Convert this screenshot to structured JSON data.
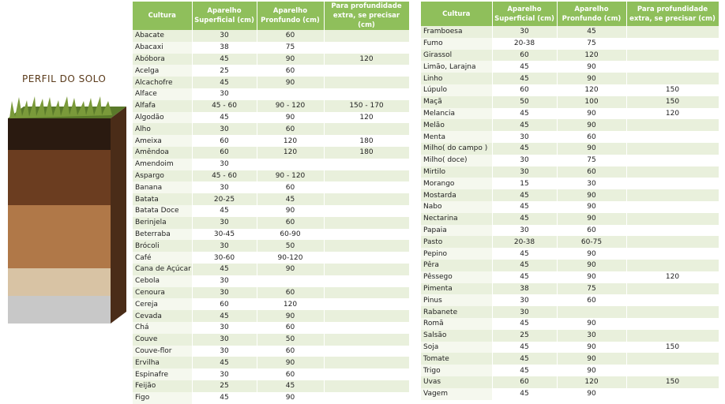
{
  "image_title": "PERFIL DO SOLO",
  "tables": [
    {
      "header": [
        "Cultura",
        "Aparelho Superficial (cm)",
        "Aparelho Pronfundo (cm)",
        "Para profundidade extra, se precisar (cm)"
      ],
      "rows": [
        [
          "Abacate",
          "30",
          "60"
        ],
        [
          "Abacaxi",
          "38",
          "75"
        ],
        [
          "Abóbora",
          "45",
          "90",
          "120"
        ],
        [
          "Acelga",
          "25",
          "60"
        ],
        [
          "Alcachofre",
          "45",
          "90"
        ],
        [
          "Alface",
          "30"
        ],
        [
          "Alfafa",
          "45 - 60",
          "90 - 120",
          "150 - 170"
        ],
        [
          "Algodão",
          "45",
          "90",
          "120"
        ],
        [
          "Alho",
          "30",
          "60"
        ],
        [
          "Ameixa",
          "60",
          "120",
          "180"
        ],
        [
          "Amêndoa",
          "60",
          "120",
          "180"
        ],
        [
          "Amendoim",
          "30"
        ],
        [
          "Aspargo",
          "45 - 60",
          "90 - 120"
        ],
        [
          "Banana",
          "30",
          "60"
        ],
        [
          "Batata",
          "20-25",
          "45"
        ],
        [
          "Batata Doce",
          "45",
          "90"
        ],
        [
          "Berinjela",
          "30",
          "60"
        ],
        [
          "Beterraba",
          "30-45",
          "60-90"
        ],
        [
          "Brócoli",
          "30",
          "50"
        ],
        [
          "Café",
          "30-60",
          "90-120"
        ],
        [
          "Cana de Açúcar",
          "45",
          "90"
        ],
        [
          "Cebola",
          "30"
        ],
        [
          "Cenoura",
          "30",
          "60"
        ],
        [
          "Cereja",
          "60",
          "120"
        ],
        [
          "Cevada",
          "45",
          "90"
        ],
        [
          "Chá",
          "30",
          "60"
        ],
        [
          "Couve",
          "30",
          "50"
        ],
        [
          "Couve-flor",
          "30",
          "60"
        ],
        [
          "Ervilha",
          "45",
          "90"
        ],
        [
          "Espinafre",
          "30",
          "60"
        ],
        [
          "Feijão",
          "25",
          "45"
        ],
        [
          "Figo",
          "45",
          "90"
        ]
      ]
    },
    {
      "header": [
        "Cultura",
        "Aparelho Superficial (cm)",
        "Aparelho Pronfundo (cm)",
        "Para profundidade extra, se precisar (cm)"
      ],
      "rows": [
        [
          "Framboesa",
          "30",
          "45"
        ],
        [
          "Fumo",
          "20-38",
          "75"
        ],
        [
          "Girassol",
          "60",
          "120"
        ],
        [
          "Limão, Larajna",
          "45",
          "90"
        ],
        [
          "Linho",
          "45",
          "90"
        ],
        [
          "Lúpulo",
          "60",
          "120",
          "150"
        ],
        [
          "Maçã",
          "50",
          "100",
          "150"
        ],
        [
          "Melancia",
          "45",
          "90",
          "120"
        ],
        [
          "Melão",
          "45",
          "90"
        ],
        [
          "Menta",
          "30",
          "60"
        ],
        [
          "Milho( do campo )",
          "45",
          "90"
        ],
        [
          "Milho( doce)",
          "30",
          "75"
        ],
        [
          "Mirtilo",
          "30",
          "60"
        ],
        [
          "Morango",
          "15",
          "30"
        ],
        [
          "Mostarda",
          "45",
          "90"
        ],
        [
          "Nabo",
          "45",
          "90"
        ],
        [
          "Nectarina",
          "45",
          "90"
        ],
        [
          "Papaia",
          "30",
          "60"
        ],
        [
          "Pasto",
          "20-38",
          "60-75"
        ],
        [
          "Pepino",
          "45",
          "90"
        ],
        [
          "Pêra",
          "45",
          "90"
        ],
        [
          "Pêssego",
          "45",
          "90",
          "120"
        ],
        [
          "Pimenta",
          "38",
          "75"
        ],
        [
          "Pinus",
          "30",
          "60"
        ],
        [
          "Rabanete",
          "30"
        ],
        [
          "Romã",
          "45",
          "90"
        ],
        [
          "Salsão",
          "25",
          "30"
        ],
        [
          "Soja",
          "45",
          "90",
          "150"
        ],
        [
          "Tomate",
          "45",
          "90"
        ],
        [
          "Trigo",
          "45",
          "90"
        ],
        [
          "Uvas",
          "60",
          "120",
          "150"
        ],
        [
          "Vagem",
          "45",
          "90"
        ]
      ]
    }
  ]
}
